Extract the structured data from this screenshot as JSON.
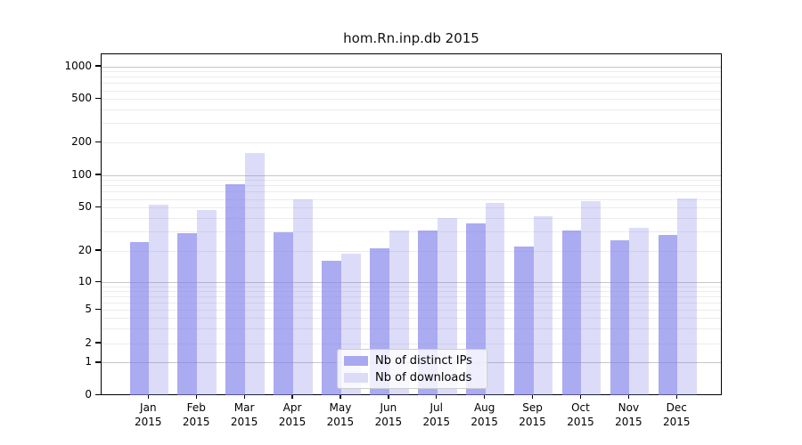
{
  "chart_data": {
    "type": "bar",
    "title": "hom.Rn.inp.db 2015",
    "categories": [
      "Jan 2015",
      "Feb 2015",
      "Mar 2015",
      "Apr 2015",
      "May 2015",
      "Jun 2015",
      "Jul 2015",
      "Aug 2015",
      "Sep 2015",
      "Oct 2015",
      "Nov 2015",
      "Dec 2015"
    ],
    "month_labels": [
      "Jan",
      "Feb",
      "Mar",
      "Apr",
      "May",
      "Jun",
      "Jul",
      "Aug",
      "Sep",
      "Oct",
      "Nov",
      "Dec"
    ],
    "year": "2015",
    "series": [
      {
        "name": "Nb of distinct IPs",
        "color": "#a9a9f0",
        "fill": "rgba(127,127,234,0.66)",
        "values": [
          24,
          29,
          83,
          30,
          16,
          21,
          31,
          36,
          22,
          31,
          25,
          28
        ]
      },
      {
        "name": "Nb of downloads",
        "color": "#dcdcf8",
        "fill": "rgba(127,127,234,0.27)",
        "values": [
          54,
          48,
          160,
          60,
          19,
          31,
          40,
          56,
          42,
          58,
          33,
          61
        ]
      }
    ],
    "yaxis": {
      "scale": "symlog",
      "ticks": [
        0,
        1,
        2,
        5,
        10,
        20,
        50,
        100,
        200,
        500,
        1000
      ],
      "ylim": [
        0,
        1400
      ]
    },
    "legend": {
      "position": "bottom-center",
      "entries": [
        "Nb of distinct IPs",
        "Nb of downloads"
      ]
    },
    "grid": "on"
  }
}
